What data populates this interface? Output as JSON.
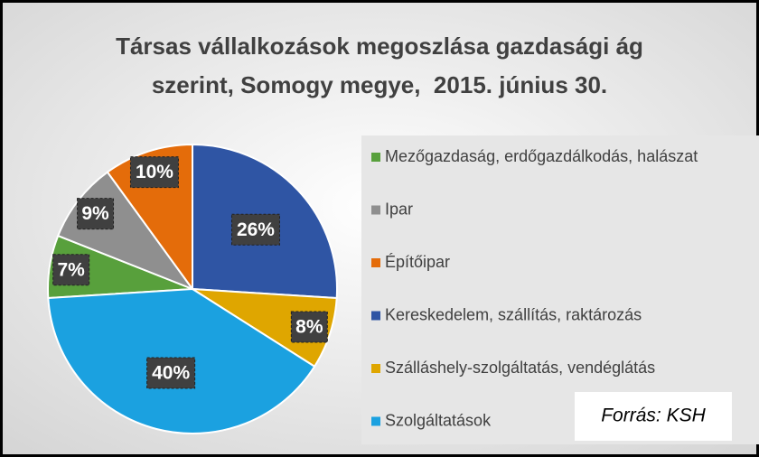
{
  "chart_data": {
    "type": "pie",
    "title": [
      "Társas vállalkozások megoszlása gazdasági ág",
      "szerint, Somogy megye,  2015. június 30."
    ],
    "categories": [
      "Mezőgazdaság, erdőgazdálkodás, halászat",
      "Ipar",
      "Építőipar",
      "Kereskedelem, szállítás, raktározás",
      "Szálláshely-szolgáltatás, vendéglátás",
      "Szolgáltatások"
    ],
    "values": [
      7,
      9,
      10,
      26,
      8,
      40
    ],
    "value_labels": [
      "7%",
      "9%",
      "10%",
      "26%",
      "8%",
      "40%"
    ],
    "colors": [
      "#58a03c",
      "#8f8f8f",
      "#e46c0a",
      "#2f55a4",
      "#dfa600",
      "#1ba1e0"
    ],
    "legend": "right",
    "source": "Forrás: KSH"
  }
}
